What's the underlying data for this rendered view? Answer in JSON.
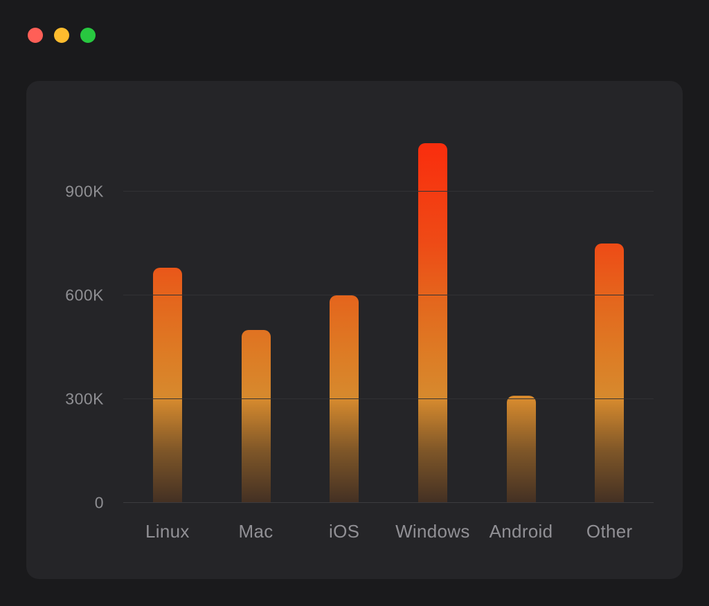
{
  "window": {
    "controls": [
      {
        "name": "close",
        "color": "#ff5f57"
      },
      {
        "name": "minimize",
        "color": "#febc2e"
      },
      {
        "name": "maximize",
        "color": "#28c840"
      }
    ]
  },
  "theme": {
    "background": "#1a1a1c",
    "card_background": "#252528",
    "gridline_color": "#323235",
    "baseline_color": "#3c3c3f",
    "tick_label_color": "#8f8f93",
    "category_label_color": "#919095"
  },
  "chart_data": {
    "type": "bar",
    "title": "",
    "xlabel": "",
    "ylabel": "",
    "categories": [
      "Linux",
      "Mac",
      "iOS",
      "Windows",
      "Android",
      "Other"
    ],
    "values": [
      680000,
      500000,
      600000,
      1040000,
      310000,
      750000
    ],
    "y_ticks": [
      {
        "value": 0,
        "label": "0"
      },
      {
        "value": 300000,
        "label": "300K"
      },
      {
        "value": 600000,
        "label": "600K"
      },
      {
        "value": 900000,
        "label": "900K"
      }
    ],
    "ylim": [
      0,
      1070000
    ],
    "grid": true,
    "legend": false,
    "bar_gradient": [
      {
        "pos": 0,
        "color": "#fb2a0c"
      },
      {
        "pos": 30,
        "color": "#ee4b16"
      },
      {
        "pos": 45,
        "color": "#e4661d"
      },
      {
        "pos": 60,
        "color": "#dd7c25"
      },
      {
        "pos": 72,
        "color": "#d68a2e"
      },
      {
        "pos": 86,
        "color": "#7e5628"
      },
      {
        "pos": 100,
        "color": "#433023"
      }
    ]
  }
}
